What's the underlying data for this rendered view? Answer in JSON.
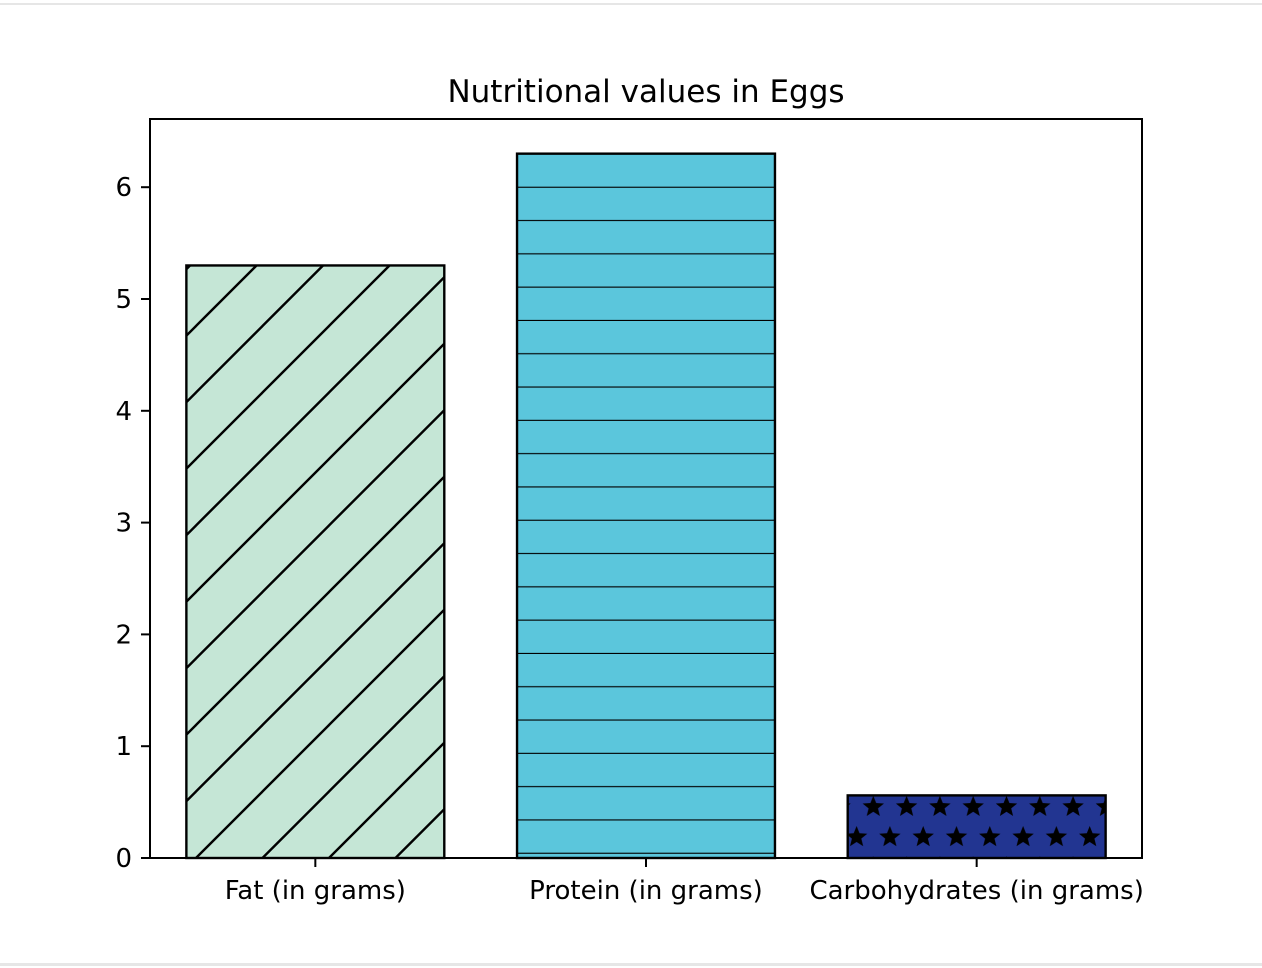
{
  "chart_data": {
    "type": "bar",
    "title": "Nutritional values in Eggs",
    "xlabel": "",
    "ylabel": "",
    "categories": [
      "Fat (in grams)",
      "Protein (in grams)",
      "Carbohydrates (in grams)"
    ],
    "values": [
      5.3,
      6.3,
      0.56
    ],
    "ylim": [
      0,
      6.61
    ],
    "yticks": [
      "0",
      "1",
      "2",
      "3",
      "4",
      "5",
      "6"
    ],
    "grid": false,
    "bars": [
      {
        "fill": "#c5e6d6",
        "hatch": "diagonal",
        "edge": "#000000"
      },
      {
        "fill": "#5bc6dc",
        "hatch": "horizontal",
        "edge": "#000000"
      },
      {
        "fill": "#223591",
        "hatch": "stars",
        "edge": "#000000"
      }
    ]
  }
}
